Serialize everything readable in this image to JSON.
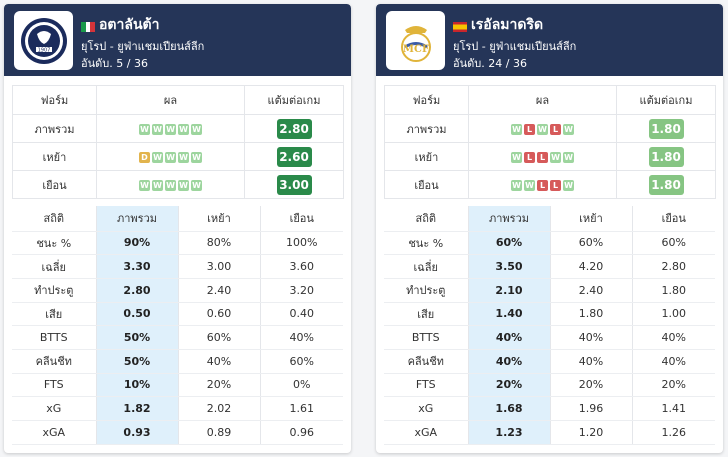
{
  "colors": {
    "header_bg": "#253558",
    "win": "#9dd59e",
    "loss": "#d65a5a",
    "draw": "#e2b44d",
    "ppg_dark": "#2a8a4a",
    "ppg_light": "#86c583",
    "highlight_col": "#dff0fb"
  },
  "teams": [
    {
      "name": "อตาลันต้า",
      "flag_icon": "italy-flag-icon",
      "logo_icon": "atalanta-crest-icon",
      "league": "ยุโรป - ยูฟ่าแชมเปียนส์ลีก",
      "rank": "อันดับ. 5 / 36",
      "form_headers": [
        "ฟอร์ม",
        "ผล",
        "แต้มต่อเกม"
      ],
      "form_rows": [
        {
          "label": "ภาพรวม",
          "results": [
            "W",
            "W",
            "W",
            "W",
            "W"
          ],
          "ppg": "2.80",
          "ppg_color": "#2a8a4a"
        },
        {
          "label": "เหย้า",
          "results": [
            "D",
            "W",
            "W",
            "W",
            "W"
          ],
          "ppg": "2.60",
          "ppg_color": "#2a8a4a"
        },
        {
          "label": "เยือน",
          "results": [
            "W",
            "W",
            "W",
            "W",
            "W"
          ],
          "ppg": "3.00",
          "ppg_color": "#2a8a4a"
        }
      ],
      "stats_headers": [
        "สถิติ",
        "ภาพรวม",
        "เหย้า",
        "เยือน"
      ],
      "stats_rows": [
        {
          "label": "ชนะ %",
          "overall": "90%",
          "home": "80%",
          "away": "100%"
        },
        {
          "label": "เฉลี่ย",
          "overall": "3.30",
          "home": "3.00",
          "away": "3.60"
        },
        {
          "label": "ทำประตู",
          "overall": "2.80",
          "home": "2.40",
          "away": "3.20"
        },
        {
          "label": "เสีย",
          "overall": "0.50",
          "home": "0.60",
          "away": "0.40"
        },
        {
          "label": "BTTS",
          "overall": "50%",
          "home": "60%",
          "away": "40%"
        },
        {
          "label": "คลีนชีท",
          "overall": "50%",
          "home": "40%",
          "away": "60%"
        },
        {
          "label": "FTS",
          "overall": "10%",
          "home": "20%",
          "away": "0%"
        },
        {
          "label": "xG",
          "overall": "1.82",
          "home": "2.02",
          "away": "1.61"
        },
        {
          "label": "xGA",
          "overall": "0.93",
          "home": "0.89",
          "away": "0.96"
        }
      ]
    },
    {
      "name": "เรอัลมาดริด",
      "flag_icon": "spain-flag-icon",
      "logo_icon": "real-madrid-crest-icon",
      "league": "ยุโรป - ยูฟ่าแชมเปียนส์ลีก",
      "rank": "อันดับ. 24 / 36",
      "form_headers": [
        "ฟอร์ม",
        "ผล",
        "แต้มต่อเกม"
      ],
      "form_rows": [
        {
          "label": "ภาพรวม",
          "results": [
            "W",
            "L",
            "W",
            "L",
            "W"
          ],
          "ppg": "1.80",
          "ppg_color": "#86c583"
        },
        {
          "label": "เหย้า",
          "results": [
            "W",
            "L",
            "L",
            "W",
            "W"
          ],
          "ppg": "1.80",
          "ppg_color": "#86c583"
        },
        {
          "label": "เยือน",
          "results": [
            "W",
            "W",
            "L",
            "L",
            "W"
          ],
          "ppg": "1.80",
          "ppg_color": "#86c583"
        }
      ],
      "stats_headers": [
        "สถิติ",
        "ภาพรวม",
        "เหย้า",
        "เยือน"
      ],
      "stats_rows": [
        {
          "label": "ชนะ %",
          "overall": "60%",
          "home": "60%",
          "away": "60%"
        },
        {
          "label": "เฉลี่ย",
          "overall": "3.50",
          "home": "4.20",
          "away": "2.80"
        },
        {
          "label": "ทำประตู",
          "overall": "2.10",
          "home": "2.40",
          "away": "1.80"
        },
        {
          "label": "เสีย",
          "overall": "1.40",
          "home": "1.80",
          "away": "1.00"
        },
        {
          "label": "BTTS",
          "overall": "40%",
          "home": "40%",
          "away": "40%"
        },
        {
          "label": "คลีนชีท",
          "overall": "40%",
          "home": "40%",
          "away": "40%"
        },
        {
          "label": "FTS",
          "overall": "20%",
          "home": "20%",
          "away": "20%"
        },
        {
          "label": "xG",
          "overall": "1.68",
          "home": "1.96",
          "away": "1.41"
        },
        {
          "label": "xGA",
          "overall": "1.23",
          "home": "1.20",
          "away": "1.26"
        }
      ]
    }
  ]
}
